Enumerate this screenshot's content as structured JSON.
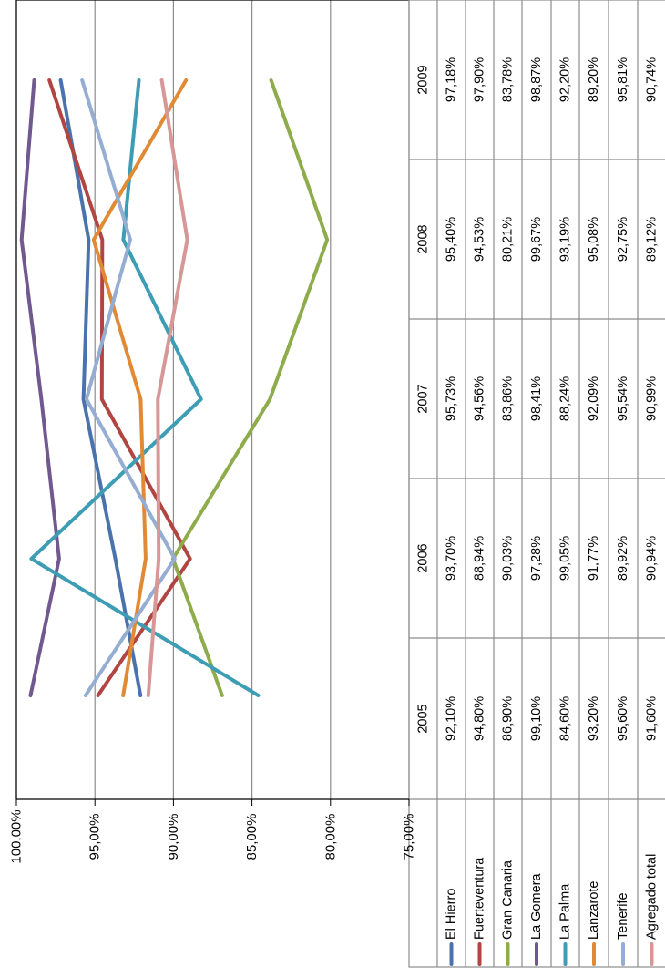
{
  "chart_data": {
    "type": "line",
    "orientation": "rotated-90",
    "x": [
      "2005",
      "2006",
      "2007",
      "2008",
      "2009"
    ],
    "y_ticks": [
      "100,00%",
      "95,00%",
      "90,00%",
      "85,00%",
      "80,00%",
      "75,00%"
    ],
    "ylim": [
      75,
      100
    ],
    "grid": true,
    "legend_placement": "data-table",
    "series": [
      {
        "name": "El Hierro",
        "color": "#4a72ad",
        "values": [
          92.1,
          93.7,
          95.73,
          95.4,
          97.18
        ],
        "labels": [
          "92,10%",
          "93,70%",
          "95,73%",
          "95,40%",
          "97,18%"
        ]
      },
      {
        "name": "Fuerteventura",
        "color": "#b04542",
        "values": [
          94.8,
          88.94,
          94.56,
          94.53,
          97.9
        ],
        "labels": [
          "94,80%",
          "88,94%",
          "94,56%",
          "94,53%",
          "97,90%"
        ]
      },
      {
        "name": "Gran Canaria",
        "color": "#8eac4c",
        "values": [
          86.9,
          90.03,
          83.86,
          80.21,
          83.78
        ],
        "labels": [
          "86,90%",
          "90,03%",
          "83,86%",
          "80,21%",
          "83,78%"
        ]
      },
      {
        "name": "La Gomera",
        "color": "#71588f",
        "values": [
          99.1,
          97.28,
          98.41,
          99.67,
          98.87
        ],
        "labels": [
          "99,10%",
          "97,28%",
          "98,41%",
          "99,67%",
          "98,87%"
        ]
      },
      {
        "name": "La Palma",
        "color": "#3d9db4",
        "values": [
          84.6,
          99.05,
          88.24,
          93.19,
          92.2
        ],
        "labels": [
          "84,60%",
          "99,05%",
          "88,24%",
          "93,19%",
          "92,20%"
        ]
      },
      {
        "name": "Lanzarote",
        "color": "#e18a35",
        "values": [
          93.2,
          91.77,
          92.09,
          95.08,
          89.2
        ],
        "labels": [
          "93,20%",
          "91,77%",
          "92,09%",
          "95,08%",
          "89,20%"
        ]
      },
      {
        "name": "Tenerife",
        "color": "#95add3",
        "values": [
          95.6,
          89.92,
          95.54,
          92.75,
          95.81
        ],
        "labels": [
          "95,60%",
          "89,92%",
          "95,54%",
          "92,75%",
          "95,81%"
        ]
      },
      {
        "name": "Agregado total",
        "color": "#d69796",
        "values": [
          91.6,
          90.94,
          90.99,
          89.12,
          90.74
        ],
        "labels": [
          "91,60%",
          "90,94%",
          "90,99%",
          "89,12%",
          "90,74%"
        ]
      }
    ]
  }
}
